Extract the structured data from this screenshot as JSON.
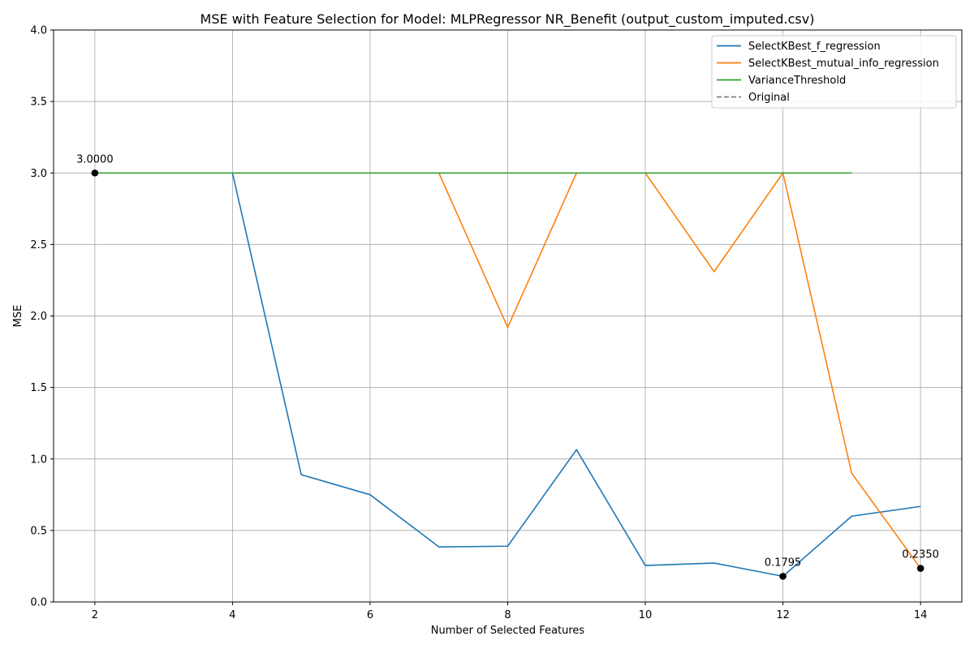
{
  "chart_data": {
    "type": "line",
    "title": "MSE with Feature Selection for Model: MLPRegressor NR_Benefit (output_custom_imputed.csv)",
    "xlabel": "Number of Selected Features",
    "ylabel": "MSE",
    "xlim": [
      1.4,
      14.6
    ],
    "ylim": [
      0,
      4
    ],
    "xticks": [
      2,
      4,
      6,
      8,
      10,
      12,
      14
    ],
    "yticks": [
      0.0,
      0.5,
      1.0,
      1.5,
      2.0,
      2.5,
      3.0,
      3.5,
      4.0
    ],
    "xtick_labels": [
      "2",
      "4",
      "6",
      "8",
      "10",
      "12",
      "14"
    ],
    "ytick_labels": [
      "0.0",
      "0.5",
      "1.0",
      "1.5",
      "2.0",
      "2.5",
      "3.0",
      "3.5",
      "4.0"
    ],
    "grid": true,
    "legend_position": "top-right",
    "series": [
      {
        "name": "SelectKBest_f_regression",
        "color": "#1f77b4",
        "style": "solid",
        "x": [
          2,
          3,
          4,
          5,
          6,
          7,
          8,
          9,
          10,
          11,
          12,
          13,
          14
        ],
        "y": [
          3.0,
          3.0,
          3.0,
          0.89,
          0.75,
          0.385,
          0.39,
          1.065,
          0.255,
          0.272,
          0.1795,
          0.6,
          0.668
        ]
      },
      {
        "name": "SelectKBest_mutual_info_regression",
        "color": "#ff7f0e",
        "style": "solid",
        "x": [
          2,
          3,
          4,
          5,
          6,
          7,
          8,
          9,
          10,
          11,
          12,
          13,
          14
        ],
        "y": [
          3.0,
          3.0,
          3.0,
          3.0,
          3.0,
          3.0,
          1.92,
          3.0,
          3.0,
          2.31,
          3.0,
          0.9,
          0.235
        ]
      },
      {
        "name": "VarianceThreshold",
        "color": "#2ca02c",
        "style": "solid",
        "x": [
          2,
          3,
          4,
          5,
          6,
          7,
          8,
          9,
          10,
          11,
          12,
          13
        ],
        "y": [
          3.0,
          3.0,
          3.0,
          3.0,
          3.0,
          3.0,
          3.0,
          3.0,
          3.0,
          3.0,
          3.0,
          3.0
        ]
      },
      {
        "name": "Original",
        "color": "#7f7f7f",
        "style": "dashed",
        "x": [],
        "y": []
      }
    ],
    "annotations": [
      {
        "x": 2,
        "y": 3.0,
        "label": "3.0000"
      },
      {
        "x": 12,
        "y": 0.1795,
        "label": "0.1795"
      },
      {
        "x": 14,
        "y": 0.235,
        "label": "0.2350"
      }
    ]
  }
}
